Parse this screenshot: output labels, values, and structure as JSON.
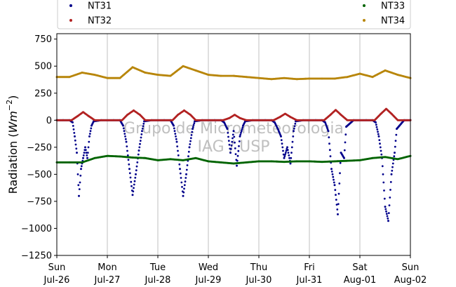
{
  "chart_data": {
    "type": "scatter",
    "title": "",
    "ylabel": "Radiation ($Wm^{-2}$)",
    "ylabel_prefix": "Radiation (",
    "ylabel_unit_base": "Wm",
    "ylabel_unit_exp": "−2",
    "ylabel_suffix": ")",
    "xlabel": "",
    "ylim": [
      -1250,
      800
    ],
    "xlim": [
      0,
      7
    ],
    "yticks": [
      {
        "value": 750,
        "label": "750"
      },
      {
        "value": 500,
        "label": "500"
      },
      {
        "value": 250,
        "label": "250"
      },
      {
        "value": 0,
        "label": "0"
      },
      {
        "value": -250,
        "label": "−250"
      },
      {
        "value": -500,
        "label": "−500"
      },
      {
        "value": -750,
        "label": "−750"
      },
      {
        "value": -1000,
        "label": "−1000"
      },
      {
        "value": -1250,
        "label": "−1250"
      }
    ],
    "xticks": [
      {
        "value": 0,
        "line1": "Sun",
        "line2": "Jul-26"
      },
      {
        "value": 1,
        "line1": "Mon",
        "line2": "Jul-27"
      },
      {
        "value": 2,
        "line1": "Tue",
        "line2": "Jul-28"
      },
      {
        "value": 3,
        "line1": "Wed",
        "line2": "Jul-29"
      },
      {
        "value": 4,
        "line1": "Thu",
        "line2": "Jul-30"
      },
      {
        "value": 5,
        "line1": "Fri",
        "line2": "Jul-31"
      },
      {
        "value": 6,
        "line1": "Sat",
        "line2": "Aug-01"
      },
      {
        "value": 7,
        "line1": "Sun",
        "line2": "Aug-02"
      }
    ],
    "grid": "vertical",
    "legend_position": "top",
    "watermark": [
      "Grupo de Micrometeorologia",
      "IAG / USP"
    ],
    "series": [
      {
        "name": "NT31",
        "color": "#00008b",
        "x": [
          "2020-07-26 00:00",
          "2020-07-26 03:00",
          "2020-07-26 06:00",
          "2020-07-26 07:30",
          "2020-07-26 08:30",
          "2020-07-26 09:30",
          "2020-07-26 10:30",
          "2020-07-26 11:30",
          "2020-07-26 12:30",
          "2020-07-26 13:30",
          "2020-07-26 14:30",
          "2020-07-26 15:30",
          "2020-07-26 16:30",
          "2020-07-26 17:30",
          "2020-07-26 21:00",
          "2020-07-27 03:00",
          "2020-07-27 06:00",
          "2020-07-27 07:30",
          "2020-07-27 09:00",
          "2020-07-27 10:30",
          "2020-07-27 12:00",
          "2020-07-27 13:30",
          "2020-07-27 15:00",
          "2020-07-27 16:30",
          "2020-07-27 17:30",
          "2020-07-27 21:00",
          "2020-07-28 03:00",
          "2020-07-28 06:00",
          "2020-07-28 07:30",
          "2020-07-28 09:00",
          "2020-07-28 10:30",
          "2020-07-28 12:00",
          "2020-07-28 13:30",
          "2020-07-28 15:00",
          "2020-07-28 16:30",
          "2020-07-28 17:30",
          "2020-07-28 21:00",
          "2020-07-29 03:00",
          "2020-07-29 06:00",
          "2020-07-29 07:30",
          "2020-07-29 09:00",
          "2020-07-29 10:30",
          "2020-07-29 12:00",
          "2020-07-29 13:30",
          "2020-07-29 15:00",
          "2020-07-29 16:30",
          "2020-07-29 17:30",
          "2020-07-29 21:00",
          "2020-07-30 03:00",
          "2020-07-30 06:00",
          "2020-07-30 07:30",
          "2020-07-30 09:00",
          "2020-07-30 10:30",
          "2020-07-30 12:00",
          "2020-07-30 13:30",
          "2020-07-30 15:00",
          "2020-07-30 16:30",
          "2020-07-30 17:30",
          "2020-07-30 21:00",
          "2020-07-31 03:00",
          "2020-07-31 06:00",
          "2020-07-31 07:30",
          "2020-07-31 09:00",
          "2020-07-31 10:30",
          "2020-07-31 12:00",
          "2020-07-31 13:30",
          "2020-07-31 15:00",
          "2020-07-31 16:30",
          "2020-07-31 17:30",
          "2020-07-31 21:00",
          "2020-08-01 03:00",
          "2020-08-01 06:00",
          "2020-08-01 07:30",
          "2020-08-01 09:00",
          "2020-08-01 10:30",
          "2020-08-01 12:00",
          "2020-08-01 13:30",
          "2020-08-01 15:00",
          "2020-08-01 16:30",
          "2020-08-01 17:30",
          "2020-08-01 21:00",
          "2020-08-02 00:00"
        ],
        "y": [
          0,
          0,
          0,
          -20,
          -150,
          -300,
          -700,
          -450,
          -350,
          -250,
          -350,
          -150,
          -50,
          -10,
          0,
          0,
          0,
          -50,
          -200,
          -450,
          -690,
          -500,
          -280,
          -100,
          -10,
          0,
          0,
          0,
          -50,
          -200,
          -450,
          -700,
          -500,
          -250,
          -80,
          -10,
          0,
          0,
          0,
          -20,
          -80,
          -300,
          -100,
          -420,
          -150,
          -50,
          -10,
          0,
          0,
          0,
          -20,
          -80,
          -150,
          -350,
          -250,
          -400,
          -100,
          -10,
          0,
          0,
          0,
          -20,
          -100,
          -450,
          -600,
          -870,
          -300,
          -350,
          -60,
          0,
          0,
          0,
          -20,
          -150,
          -350,
          -800,
          -930,
          -500,
          -300,
          -80,
          0,
          0
        ]
      },
      {
        "name": "NT32",
        "color": "#b22222",
        "x": [
          "2020-07-26 00:00",
          "2020-07-26 07:00",
          "2020-07-26 10:00",
          "2020-07-26 12:30",
          "2020-07-26 15:00",
          "2020-07-26 18:00",
          "2020-07-27 07:00",
          "2020-07-27 09:30",
          "2020-07-27 12:30",
          "2020-07-27 15:30",
          "2020-07-27 18:00",
          "2020-07-28 07:00",
          "2020-07-28 09:30",
          "2020-07-28 12:30",
          "2020-07-28 15:30",
          "2020-07-28 18:00",
          "2020-07-29 07:00",
          "2020-07-29 10:00",
          "2020-07-29 12:30",
          "2020-07-29 15:00",
          "2020-07-29 18:00",
          "2020-07-30 07:00",
          "2020-07-30 10:00",
          "2020-07-30 12:30",
          "2020-07-30 15:00",
          "2020-07-30 18:00",
          "2020-07-31 07:00",
          "2020-07-31 10:00",
          "2020-07-31 12:30",
          "2020-07-31 15:00",
          "2020-07-31 18:00",
          "2020-08-01 07:00",
          "2020-08-01 10:00",
          "2020-08-01 12:30",
          "2020-08-01 15:00",
          "2020-08-01 18:00",
          "2020-08-02 00:00"
        ],
        "y": [
          0,
          0,
          40,
          75,
          40,
          0,
          0,
          50,
          90,
          50,
          0,
          0,
          50,
          90,
          50,
          0,
          0,
          20,
          50,
          20,
          0,
          0,
          30,
          60,
          30,
          0,
          0,
          50,
          95,
          50,
          0,
          0,
          60,
          105,
          60,
          0,
          0
        ]
      },
      {
        "name": "NT33",
        "color": "#006400",
        "x": [
          "2020-07-26 00:00",
          "2020-07-26 06:00",
          "2020-07-26 12:00",
          "2020-07-26 18:00",
          "2020-07-27 00:00",
          "2020-07-27 06:00",
          "2020-07-27 12:00",
          "2020-07-27 18:00",
          "2020-07-28 00:00",
          "2020-07-28 06:00",
          "2020-07-28 12:00",
          "2020-07-28 18:00",
          "2020-07-29 00:00",
          "2020-07-29 06:00",
          "2020-07-29 12:00",
          "2020-07-29 18:00",
          "2020-07-30 00:00",
          "2020-07-30 06:00",
          "2020-07-30 12:00",
          "2020-07-30 18:00",
          "2020-07-31 00:00",
          "2020-07-31 06:00",
          "2020-07-31 12:00",
          "2020-07-31 18:00",
          "2020-08-01 00:00",
          "2020-08-01 06:00",
          "2020-08-01 12:00",
          "2020-08-01 18:00",
          "2020-08-02 00:00"
        ],
        "y": [
          -390,
          -390,
          -390,
          -350,
          -330,
          -335,
          -345,
          -350,
          -370,
          -360,
          -370,
          -350,
          -380,
          -390,
          -400,
          -390,
          -380,
          -380,
          -385,
          -380,
          -380,
          -385,
          -380,
          -375,
          -370,
          -350,
          -340,
          -360,
          -330
        ]
      },
      {
        "name": "NT34",
        "color": "#b8860b",
        "x": [
          "2020-07-26 00:00",
          "2020-07-26 06:00",
          "2020-07-26 12:00",
          "2020-07-26 18:00",
          "2020-07-27 00:00",
          "2020-07-27 06:00",
          "2020-07-27 12:00",
          "2020-07-27 18:00",
          "2020-07-28 00:00",
          "2020-07-28 06:00",
          "2020-07-28 12:00",
          "2020-07-28 18:00",
          "2020-07-29 00:00",
          "2020-07-29 06:00",
          "2020-07-29 12:00",
          "2020-07-29 18:00",
          "2020-07-30 00:00",
          "2020-07-30 06:00",
          "2020-07-30 12:00",
          "2020-07-30 18:00",
          "2020-07-31 00:00",
          "2020-07-31 06:00",
          "2020-07-31 12:00",
          "2020-07-31 18:00",
          "2020-08-01 00:00",
          "2020-08-01 06:00",
          "2020-08-01 12:00",
          "2020-08-01 18:00",
          "2020-08-02 00:00"
        ],
        "y": [
          400,
          400,
          440,
          420,
          390,
          390,
          490,
          440,
          420,
          410,
          500,
          460,
          420,
          410,
          410,
          400,
          390,
          380,
          390,
          380,
          385,
          385,
          385,
          400,
          430,
          400,
          460,
          420,
          390
        ]
      }
    ]
  }
}
